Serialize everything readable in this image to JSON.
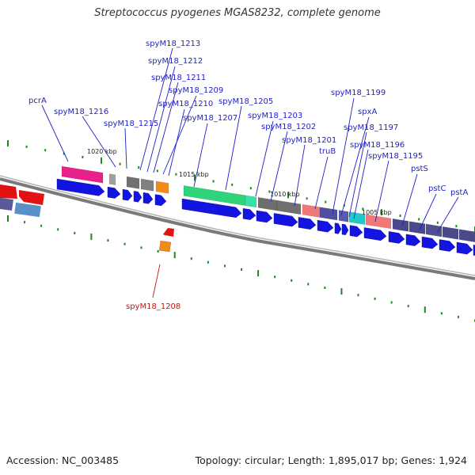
{
  "title": "Streptococcus pyogenes MGAS8232, complete genome",
  "footer": {
    "accession": "Accession: NC_003485",
    "stats": "Topology: circular; Length: 1,895,017 bp; Genes: 1,924"
  },
  "colors": {
    "label_forward": "#1f1fc8",
    "label_reverse": "#cc1111",
    "cds_forward": "#1414e0",
    "cds_reverse": "#e01212",
    "backbone": "#808080",
    "tick": "#1a8a1a"
  },
  "ticks": [
    {
      "label": "1020 kbp"
    },
    {
      "label": "1015 kbp"
    },
    {
      "label": "1010 kbp"
    },
    {
      "label": "1005 kbp"
    }
  ],
  "gene_labels": [
    {
      "text": "spyM18_1213"
    },
    {
      "text": "spyM18_1212"
    },
    {
      "text": "spyM18_1211"
    },
    {
      "text": "spyM18_1209"
    },
    {
      "text": "spyM18_1210"
    },
    {
      "text": "spyM18_1207"
    },
    {
      "text": "spyM18_1205"
    },
    {
      "text": "spyM18_1203"
    },
    {
      "text": "spyM18_1202"
    },
    {
      "text": "spyM18_1201"
    },
    {
      "text": "truB"
    },
    {
      "text": "spyM18_1199"
    },
    {
      "text": "spxA"
    },
    {
      "text": "spyM18_1197"
    },
    {
      "text": "spyM18_1196"
    },
    {
      "text": "spyM18_1195"
    },
    {
      "text": "pstS"
    },
    {
      "text": "pstC"
    },
    {
      "text": "pstA"
    },
    {
      "text": "pcrA"
    },
    {
      "text": "spyM18_1216"
    },
    {
      "text": "spyM18_1215"
    },
    {
      "text": "spyM18_1208"
    }
  ]
}
